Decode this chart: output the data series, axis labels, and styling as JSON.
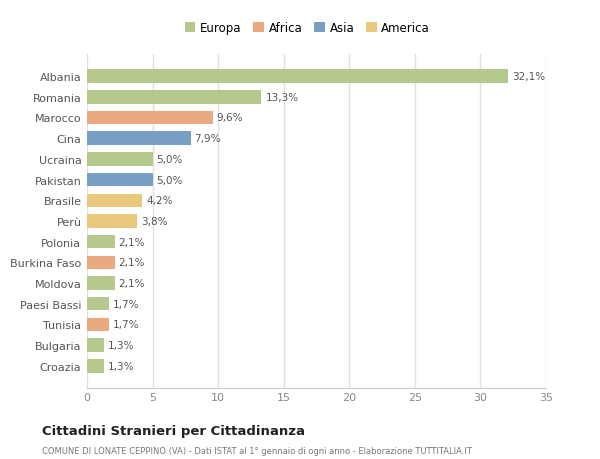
{
  "countries": [
    "Albania",
    "Romania",
    "Marocco",
    "Cina",
    "Ucraina",
    "Pakistan",
    "Brasile",
    "Perù",
    "Polonia",
    "Burkina Faso",
    "Moldova",
    "Paesi Bassi",
    "Tunisia",
    "Bulgaria",
    "Croazia"
  ],
  "values": [
    32.1,
    13.3,
    9.6,
    7.9,
    5.0,
    5.0,
    4.2,
    3.8,
    2.1,
    2.1,
    2.1,
    1.7,
    1.7,
    1.3,
    1.3
  ],
  "labels": [
    "32,1%",
    "13,3%",
    "9,6%",
    "7,9%",
    "5,0%",
    "5,0%",
    "4,2%",
    "3,8%",
    "2,1%",
    "2,1%",
    "2,1%",
    "1,7%",
    "1,7%",
    "1,3%",
    "1,3%"
  ],
  "colors": [
    "#b5c98e",
    "#b5c98e",
    "#e8aa7e",
    "#7a9fc4",
    "#b5c98e",
    "#7a9fc4",
    "#e8c97e",
    "#e8c97e",
    "#b5c98e",
    "#e8aa7e",
    "#b5c98e",
    "#b5c98e",
    "#e8aa7e",
    "#b5c98e",
    "#b5c98e"
  ],
  "legend_labels": [
    "Europa",
    "Africa",
    "Asia",
    "America"
  ],
  "legend_colors": [
    "#b5c98e",
    "#e8aa7e",
    "#7a9fc4",
    "#e8c97e"
  ],
  "title": "Cittadini Stranieri per Cittadinanza",
  "subtitle": "COMUNE DI LONATE CEPPINO (VA) - Dati ISTAT al 1° gennaio di ogni anno - Elaborazione TUTTITALIA.IT",
  "xlim": [
    0,
    35
  ],
  "xticks": [
    0,
    5,
    10,
    15,
    20,
    25,
    30,
    35
  ],
  "background_color": "#ffffff",
  "grid_color": "#e0e0e0"
}
